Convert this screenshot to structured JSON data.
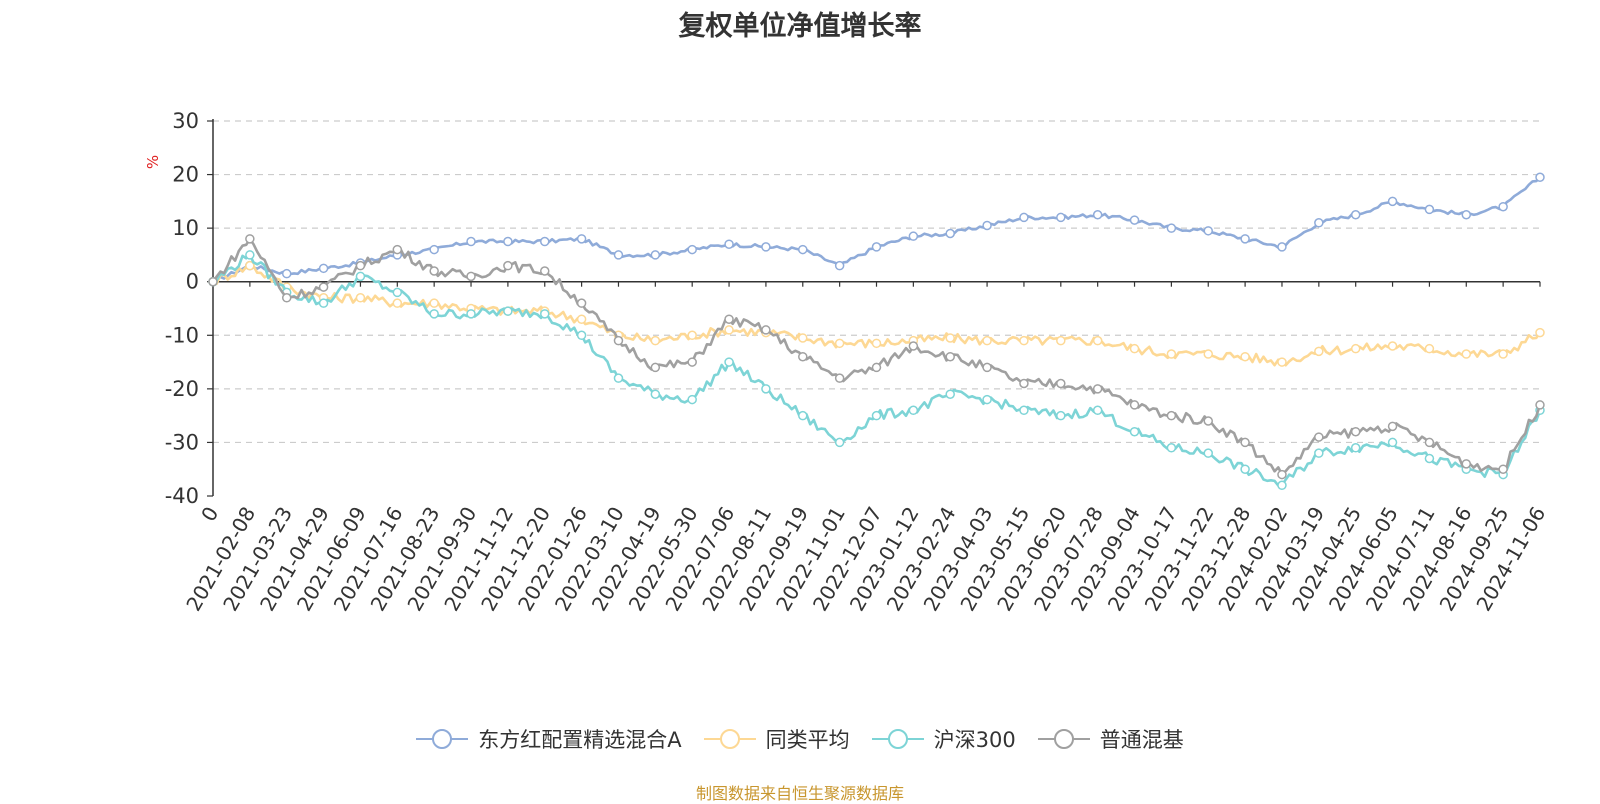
{
  "chart_data": {
    "type": "line",
    "title": "复权单位净值增长率",
    "ylabel": "%",
    "ylim": [
      -40,
      30
    ],
    "yticks": [
      "30",
      "20",
      "10",
      "0",
      "-10",
      "-20",
      "-30",
      "-40"
    ],
    "grid": true,
    "legend_position": "bottom",
    "categories": [
      "0",
      "2021-02-08",
      "2021-03-23",
      "2021-04-29",
      "2021-06-09",
      "2021-07-16",
      "2021-08-23",
      "2021-09-30",
      "2021-11-12",
      "2021-12-20",
      "2022-01-26",
      "2022-03-10",
      "2022-04-19",
      "2022-05-30",
      "2022-07-06",
      "2022-08-11",
      "2022-09-19",
      "2022-11-01",
      "2022-12-07",
      "2023-01-12",
      "2023-02-24",
      "2023-04-03",
      "2023-05-15",
      "2023-06-20",
      "2023-07-28",
      "2023-09-04",
      "2023-10-17",
      "2023-11-22",
      "2023-12-28",
      "2024-02-02",
      "2024-03-19",
      "2024-04-25",
      "2024-06-05",
      "2024-07-11",
      "2024-08-16",
      "2024-09-25",
      "2024-11-06"
    ],
    "series": [
      {
        "name": "东方红配置精选混合A",
        "color": "#8fabd9",
        "values": [
          0,
          3,
          1.5,
          2.5,
          3.5,
          5,
          6,
          7.5,
          7.5,
          7.5,
          8,
          5,
          5,
          6,
          7,
          6.5,
          6,
          3,
          6.5,
          8.5,
          9,
          10.5,
          12,
          12,
          12.5,
          11.5,
          10,
          9.5,
          8,
          6.5,
          11,
          12.5,
          15,
          13.5,
          12.5,
          14,
          19.5
        ]
      },
      {
        "name": "同类平均",
        "color": "#fdd894",
        "values": [
          0,
          3,
          -1,
          -3,
          -3,
          -4,
          -4,
          -5,
          -5.5,
          -5.5,
          -7,
          -10,
          -11,
          -10,
          -9,
          -9.5,
          -10.5,
          -11.5,
          -11.5,
          -11,
          -10.5,
          -11,
          -11,
          -11,
          -11,
          -12.5,
          -13.5,
          -13.5,
          -14,
          -15,
          -13,
          -12.5,
          -12,
          -12.5,
          -13.5,
          -13.5,
          -9.5
        ]
      },
      {
        "name": "沪深300",
        "color": "#7dd4d6",
        "values": [
          0,
          5,
          -2,
          -4,
          1,
          -2,
          -6,
          -6,
          -5.5,
          -6,
          -10,
          -18,
          -21,
          -22,
          -15,
          -20,
          -25,
          -30,
          -25,
          -24,
          -21,
          -22,
          -24,
          -25,
          -24,
          -28,
          -31,
          -32,
          -35,
          -38,
          -32,
          -31,
          -30,
          -33,
          -35,
          -36,
          -24
        ]
      },
      {
        "name": "普通混基",
        "color": "#a0a0a0",
        "values": [
          0,
          8,
          -3,
          -1,
          3,
          6,
          2,
          1,
          3,
          2,
          -4,
          -11,
          -16,
          -15,
          -7,
          -9,
          -14,
          -18,
          -16,
          -12,
          -14,
          -16,
          -19,
          -19,
          -20,
          -23,
          -25,
          -26,
          -30,
          -36,
          -29,
          -28,
          -27,
          -30,
          -34,
          -35,
          -23
        ]
      }
    ]
  },
  "source_note": "制图数据来自恒生聚源数据库"
}
